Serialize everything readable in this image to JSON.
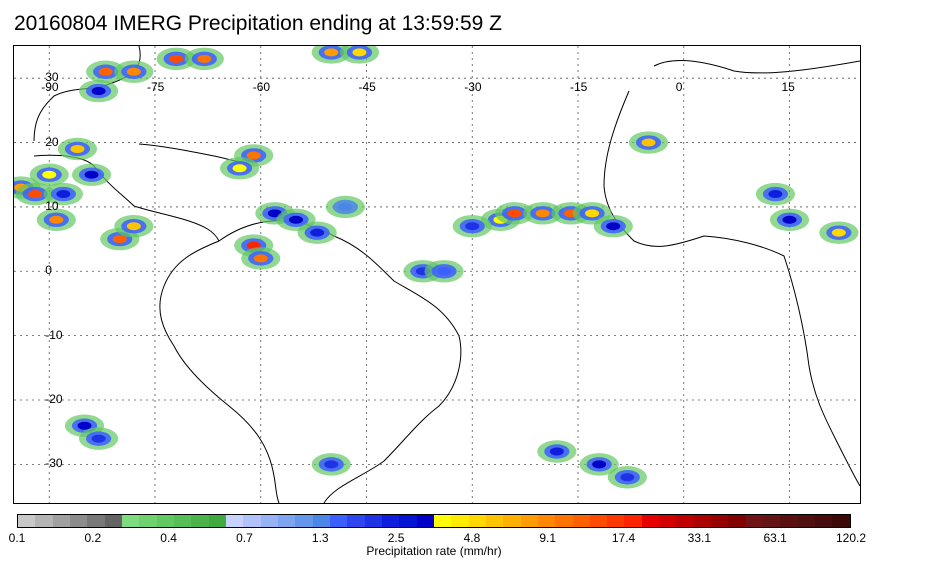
{
  "title": "20160804 IMERG Precipitation ending at 13:59:59 Z",
  "map": {
    "lon_labels": [
      "-90",
      "-75",
      "-60",
      "-45",
      "-30",
      "-15",
      "0",
      "15"
    ],
    "lat_labels": [
      "30",
      "20",
      "10",
      "0",
      "-10",
      "-20",
      "-30"
    ],
    "lon_range": [
      -95,
      25
    ],
    "lat_range": [
      -36,
      35
    ]
  },
  "colorbar": {
    "label": "Precipitation rate (mm/hr)",
    "ticks": [
      "0.1",
      "0.2",
      "0.4",
      "0.7",
      "1.3",
      "2.5",
      "4.8",
      "9.1",
      "17.4",
      "33.1",
      "63.1",
      "120.2"
    ],
    "colors": [
      "#c8c8c8",
      "#b4b4b4",
      "#a0a0a0",
      "#8c8c8c",
      "#787878",
      "#646464",
      "#7ddc7d",
      "#6fd26f",
      "#62c862",
      "#56be56",
      "#4ab44a",
      "#3faa3f",
      "#c8d2ff",
      "#afc3fa",
      "#96b4f5",
      "#7da5f0",
      "#6496eb",
      "#4b87e6",
      "#3c5fff",
      "#2d46f0",
      "#1e32e6",
      "#0f1edc",
      "#0514d2",
      "#0000c8",
      "#ffff00",
      "#ffec00",
      "#ffd800",
      "#ffc400",
      "#ffb000",
      "#ff9c00",
      "#ff8800",
      "#ff7400",
      "#ff6000",
      "#ff4c00",
      "#ff3800",
      "#ff2400",
      "#e60000",
      "#d20000",
      "#be0000",
      "#aa0000",
      "#960000",
      "#820000",
      "#6e1414",
      "#641414",
      "#5a1010",
      "#501010",
      "#460c0c",
      "#3c0808"
    ]
  },
  "chart_data": {
    "type": "heatmap",
    "title": "20160804 IMERG Precipitation ending at 13:59:59 Z",
    "colorbar_label": "Precipitation rate (mm/hr)",
    "colorbar_ticks": [
      0.1,
      0.2,
      0.4,
      0.7,
      1.3,
      2.5,
      4.8,
      9.1,
      17.4,
      33.1,
      63.1,
      120.2
    ],
    "x_ticks": [
      -90,
      -75,
      -60,
      -45,
      -30,
      -15,
      0,
      15
    ],
    "y_ticks": [
      30,
      20,
      10,
      0,
      -10,
      -20,
      -30
    ],
    "cells": [
      {
        "lon": -82,
        "lat": 31,
        "rate": 12
      },
      {
        "lon": -78,
        "lat": 31,
        "rate": 9
      },
      {
        "lon": -72,
        "lat": 33,
        "rate": 15
      },
      {
        "lon": -68,
        "lat": 33,
        "rate": 10
      },
      {
        "lon": -50,
        "lat": 34,
        "rate": 8
      },
      {
        "lon": -46,
        "lat": 34,
        "rate": 5
      },
      {
        "lon": -83,
        "lat": 28,
        "rate": 3
      },
      {
        "lon": -86,
        "lat": 19,
        "rate": 6
      },
      {
        "lon": -90,
        "lat": 15,
        "rate": 4
      },
      {
        "lon": -94,
        "lat": 13,
        "rate": 8
      },
      {
        "lon": -92,
        "lat": 12,
        "rate": 14
      },
      {
        "lon": -88,
        "lat": 12,
        "rate": 2.5
      },
      {
        "lon": -84,
        "lat": 15,
        "rate": 3
      },
      {
        "lon": -89,
        "lat": 8,
        "rate": 9
      },
      {
        "lon": -80,
        "lat": 5,
        "rate": 12
      },
      {
        "lon": -78,
        "lat": 7,
        "rate": 6
      },
      {
        "lon": -61,
        "lat": 18,
        "rate": 10
      },
      {
        "lon": -63,
        "lat": 16,
        "rate": 4
      },
      {
        "lon": -58,
        "lat": 9,
        "rate": 3
      },
      {
        "lon": -61,
        "lat": 4,
        "rate": 18
      },
      {
        "lon": -60,
        "lat": 2,
        "rate": 11
      },
      {
        "lon": -55,
        "lat": 8,
        "rate": 3
      },
      {
        "lon": -48,
        "lat": 10,
        "rate": 1.3
      },
      {
        "lon": -52,
        "lat": 6,
        "rate": 2.5
      },
      {
        "lon": -37,
        "lat": 0,
        "rate": 2
      },
      {
        "lon": -34,
        "lat": 0,
        "rate": 1.5
      },
      {
        "lon": -26,
        "lat": 8,
        "rate": 4
      },
      {
        "lon": -24,
        "lat": 9,
        "rate": 15
      },
      {
        "lon": -20,
        "lat": 9,
        "rate": 9
      },
      {
        "lon": -16,
        "lat": 9,
        "rate": 12
      },
      {
        "lon": -13,
        "lat": 9,
        "rate": 5
      },
      {
        "lon": -10,
        "lat": 7,
        "rate": 3
      },
      {
        "lon": -30,
        "lat": 7,
        "rate": 2
      },
      {
        "lon": -5,
        "lat": 20,
        "rate": 6
      },
      {
        "lon": 13,
        "lat": 12,
        "rate": 2.5
      },
      {
        "lon": 15,
        "lat": 8,
        "rate": 3
      },
      {
        "lon": 22,
        "lat": 6,
        "rate": 5
      },
      {
        "lon": -85,
        "lat": -24,
        "rate": 3
      },
      {
        "lon": -83,
        "lat": -26,
        "rate": 2
      },
      {
        "lon": -50,
        "lat": -30,
        "rate": 2
      },
      {
        "lon": -18,
        "lat": -28,
        "rate": 2.5
      },
      {
        "lon": -12,
        "lat": -30,
        "rate": 3
      },
      {
        "lon": -8,
        "lat": -32,
        "rate": 2
      }
    ]
  }
}
